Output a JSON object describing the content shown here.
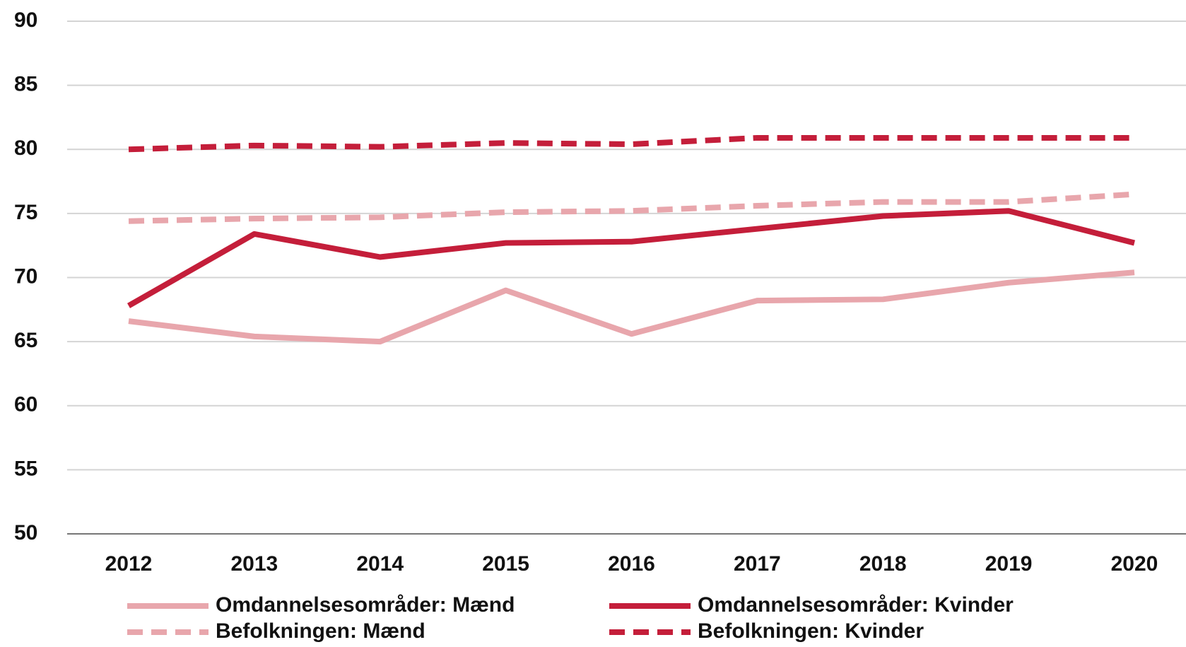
{
  "chart_data": {
    "type": "line",
    "categories": [
      "2012",
      "2013",
      "2014",
      "2015",
      "2016",
      "2017",
      "2018",
      "2019",
      "2020"
    ],
    "series": [
      {
        "name": "Omdannelsesområder: Mænd",
        "color": "#e8a6ac",
        "line_style": "solid",
        "values": [
          66.6,
          65.4,
          65.0,
          69.0,
          65.6,
          68.2,
          68.3,
          69.6,
          70.4
        ]
      },
      {
        "name": "Omdannelsesområder: Kvinder",
        "color": "#c41e3a",
        "line_style": "solid",
        "values": [
          67.8,
          73.4,
          71.6,
          72.7,
          72.8,
          73.8,
          74.8,
          75.2,
          72.7
        ]
      },
      {
        "name": "Befolkningen: Mænd",
        "color": "#e8a6ac",
        "line_style": "dashed",
        "values": [
          74.4,
          74.6,
          74.7,
          75.1,
          75.2,
          75.6,
          75.9,
          75.9,
          76.5
        ]
      },
      {
        "name": "Befolkningen: Kvinder",
        "color": "#c41e3a",
        "line_style": "dashed",
        "values": [
          80.0,
          80.3,
          80.2,
          80.5,
          80.4,
          80.9,
          80.9,
          80.9,
          80.9
        ]
      }
    ],
    "ylim": [
      50,
      90
    ],
    "yticks": [
      50,
      55,
      60,
      65,
      70,
      75,
      80,
      85,
      90
    ],
    "grid": true
  }
}
